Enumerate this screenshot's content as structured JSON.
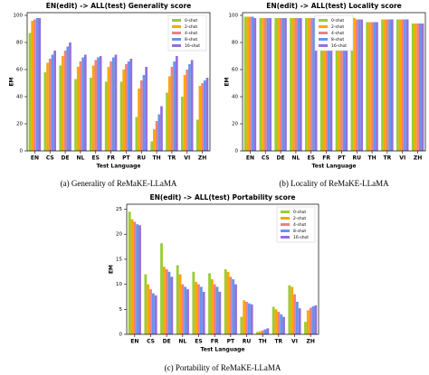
{
  "chart_data": [
    {
      "type": "bar",
      "title": "EN(edit) -> ALL(test) Generality score",
      "x_label": "Test Language",
      "y_label": "EM",
      "caption": "(a)  Generality of ReMaKE-LLaMA",
      "legend": "upper right",
      "categories": [
        "EN",
        "CS",
        "DE",
        "NL",
        "ES",
        "FR",
        "PT",
        "RU",
        "TH",
        "TR",
        "VI",
        "ZH"
      ],
      "ylim": [
        0,
        102
      ],
      "yticks": [
        0,
        20,
        40,
        60,
        80,
        100
      ],
      "series": [
        {
          "name": "0-shot",
          "color": "#9acd32",
          "values": [
            87,
            58,
            63,
            53,
            54,
            51,
            51,
            25,
            7,
            43,
            40,
            23
          ]
        },
        {
          "name": "2-shot",
          "color": "#ffa500",
          "values": [
            96,
            65,
            70,
            62,
            63,
            62,
            60,
            46,
            16,
            55,
            56,
            48
          ]
        },
        {
          "name": "4-shot",
          "color": "#f08080",
          "values": [
            97,
            68,
            74,
            66,
            67,
            66,
            64,
            52,
            22,
            62,
            60,
            50
          ]
        },
        {
          "name": "8-shot",
          "color": "#6495ed",
          "values": [
            98,
            71,
            77,
            69,
            69,
            69,
            66,
            56,
            27,
            66,
            64,
            52
          ]
        },
        {
          "name": "16-shot",
          "color": "#9370db",
          "values": [
            98,
            74,
            80,
            71,
            70,
            71,
            68,
            62,
            33,
            70,
            67,
            54
          ]
        }
      ]
    },
    {
      "type": "bar",
      "title": "EN(edit) -> ALL(test) Locality score",
      "x_label": "Test Language",
      "y_label": "EM",
      "caption": "(b)  Locality of ReMaKE-LLaMA",
      "legend": "upper center",
      "categories": [
        "EN",
        "CS",
        "DE",
        "NL",
        "ES",
        "FR",
        "PT",
        "RU",
        "TH",
        "TR",
        "VI",
        "ZH"
      ],
      "ylim": [
        0,
        102
      ],
      "yticks": [
        0,
        20,
        40,
        60,
        80,
        100
      ],
      "series": [
        {
          "name": "0-shot",
          "color": "#9acd32",
          "values": [
            99,
            98,
            98,
            98,
            98,
            98,
            98,
            98,
            95,
            97,
            97,
            94
          ]
        },
        {
          "name": "2-shot",
          "color": "#ffa500",
          "values": [
            99,
            98,
            98,
            98,
            98,
            98,
            98,
            98,
            95,
            97,
            97,
            94
          ]
        },
        {
          "name": "4-shot",
          "color": "#f08080",
          "values": [
            99,
            98,
            98,
            98,
            98,
            98,
            98,
            97,
            95,
            97,
            97,
            94
          ]
        },
        {
          "name": "8-shot",
          "color": "#6495ed",
          "values": [
            99,
            98,
            98,
            98,
            98,
            98,
            98,
            97,
            95,
            97,
            97,
            94
          ]
        },
        {
          "name": "16-shot",
          "color": "#9370db",
          "values": [
            98,
            98,
            98,
            98,
            98,
            98,
            98,
            97,
            95,
            97,
            97,
            94
          ]
        }
      ]
    },
    {
      "type": "bar",
      "title": "EN(edit) -> ALL(test) Portability score",
      "x_label": "Test Language",
      "y_label": "EM",
      "caption": "(c)  Portability of ReMaKE-LLaMA",
      "legend": "upper right",
      "categories": [
        "EN",
        "CS",
        "DE",
        "NL",
        "ES",
        "FR",
        "PT",
        "RU",
        "TH",
        "TR",
        "VI",
        "ZH"
      ],
      "ylim": [
        0,
        26
      ],
      "yticks": [
        0,
        5,
        10,
        15,
        20,
        25
      ],
      "series": [
        {
          "name": "0-shot",
          "color": "#9acd32",
          "values": [
            24.5,
            12,
            18.2,
            13.8,
            12.5,
            12.2,
            13,
            3.5,
            0.5,
            5.5,
            9.8,
            2.5
          ]
        },
        {
          "name": "2-shot",
          "color": "#ffa500",
          "values": [
            23,
            10,
            13.5,
            12,
            10.5,
            11,
            12.5,
            6.8,
            0.6,
            5,
            9.5,
            4.8
          ]
        },
        {
          "name": "4-shot",
          "color": "#f08080",
          "values": [
            22.5,
            9,
            13,
            10,
            10,
            10,
            11.5,
            6.5,
            0.8,
            4.5,
            8,
            5.3
          ]
        },
        {
          "name": "8-shot",
          "color": "#6495ed",
          "values": [
            22,
            8.2,
            12.5,
            9.5,
            9.5,
            9.5,
            11,
            6.2,
            1,
            4,
            6.5,
            5.6
          ]
        },
        {
          "name": "16-shot",
          "color": "#9370db",
          "values": [
            21.8,
            7.8,
            11.5,
            9,
            8.5,
            8.5,
            10,
            6,
            1.2,
            3.5,
            5.2,
            5.8
          ]
        }
      ]
    }
  ]
}
